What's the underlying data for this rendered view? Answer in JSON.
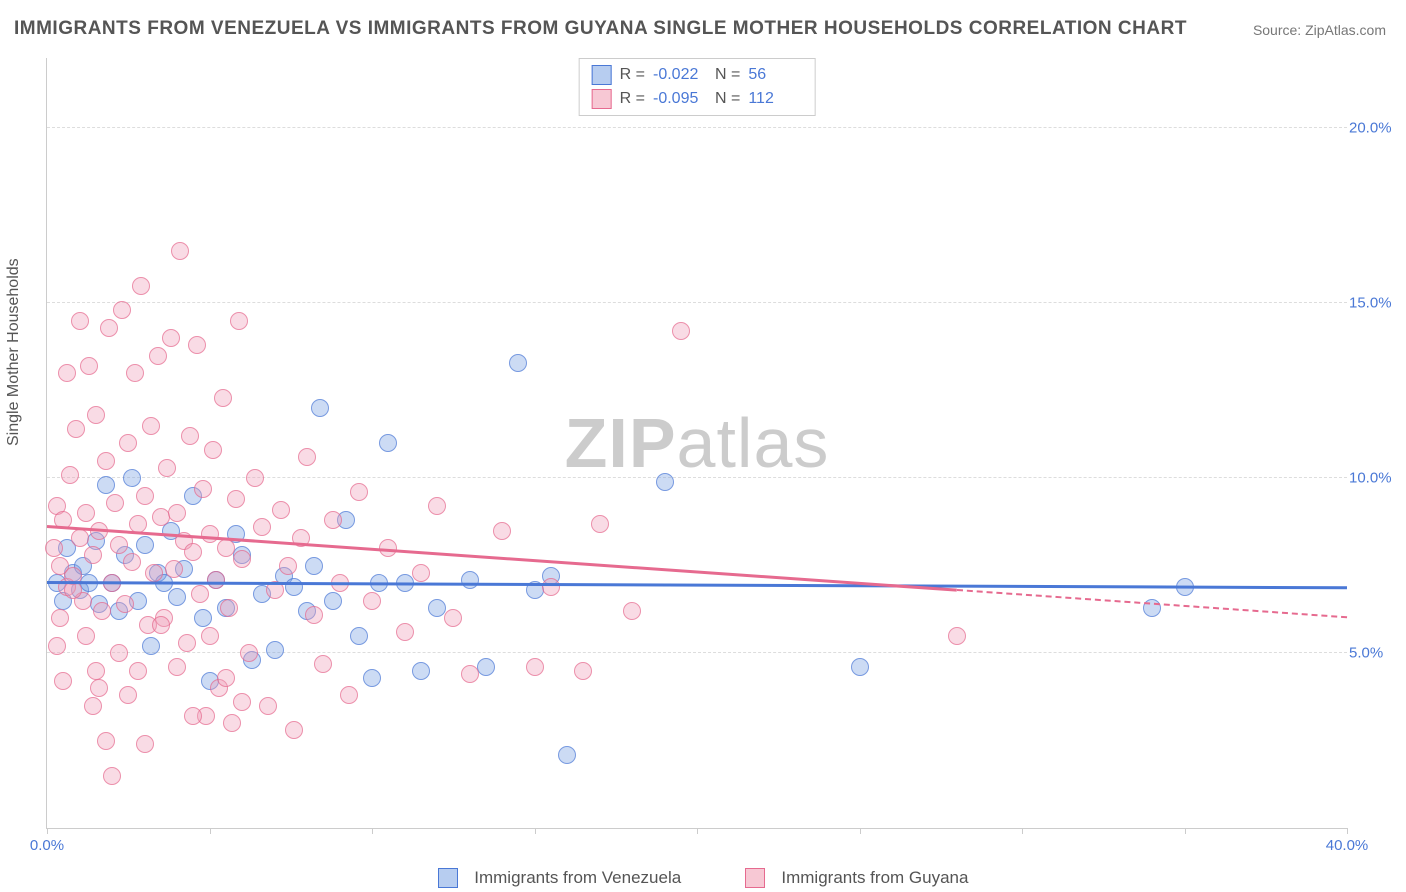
{
  "title": "IMMIGRANTS FROM VENEZUELA VS IMMIGRANTS FROM GUYANA SINGLE MOTHER HOUSEHOLDS CORRELATION CHART",
  "source": "Source: ZipAtlas.com",
  "watermark_zip": "ZIP",
  "watermark_atlas": "atlas",
  "ylabel": "Single Mother Households",
  "chart": {
    "type": "scatter",
    "xlim": [
      0,
      40
    ],
    "ylim": [
      0,
      22
    ],
    "xticks": [
      {
        "v": 0,
        "label": "0.0%"
      },
      {
        "v": 40,
        "label": "40.0%"
      }
    ],
    "xtick_marks": [
      0,
      5,
      10,
      15,
      20,
      25,
      30,
      35,
      40
    ],
    "yticks": [
      {
        "v": 5,
        "label": "5.0%"
      },
      {
        "v": 10,
        "label": "10.0%"
      },
      {
        "v": 15,
        "label": "15.0%"
      },
      {
        "v": 20,
        "label": "20.0%"
      }
    ],
    "grid_color": "#dddddd",
    "background_color": "#ffffff",
    "series": [
      {
        "name": "Immigrants from Venezuela",
        "color_fill": "rgba(120,160,225,0.5)",
        "color_border": "#4a78d6",
        "marker_size": 16,
        "R": "-0.022",
        "N": "56",
        "regression": {
          "x0": 0,
          "y0": 7.0,
          "x1": 40,
          "y1": 6.85,
          "solid_until": 40
        },
        "points": [
          [
            0.3,
            7.0
          ],
          [
            0.5,
            6.5
          ],
          [
            0.6,
            8.0
          ],
          [
            0.8,
            7.3
          ],
          [
            1.0,
            6.8
          ],
          [
            1.1,
            7.5
          ],
          [
            1.3,
            7.0
          ],
          [
            1.5,
            8.2
          ],
          [
            1.6,
            6.4
          ],
          [
            1.8,
            9.8
          ],
          [
            2.0,
            7.0
          ],
          [
            2.2,
            6.2
          ],
          [
            2.4,
            7.8
          ],
          [
            2.6,
            10.0
          ],
          [
            2.8,
            6.5
          ],
          [
            3.0,
            8.1
          ],
          [
            3.2,
            5.2
          ],
          [
            3.4,
            7.3
          ],
          [
            3.6,
            7.0
          ],
          [
            3.8,
            8.5
          ],
          [
            4.0,
            6.6
          ],
          [
            4.2,
            7.4
          ],
          [
            4.5,
            9.5
          ],
          [
            4.8,
            6.0
          ],
          [
            5.0,
            4.2
          ],
          [
            5.2,
            7.1
          ],
          [
            5.5,
            6.3
          ],
          [
            5.8,
            8.4
          ],
          [
            6.0,
            7.8
          ],
          [
            6.3,
            4.8
          ],
          [
            6.6,
            6.7
          ],
          [
            7.0,
            5.1
          ],
          [
            7.3,
            7.2
          ],
          [
            7.6,
            6.9
          ],
          [
            8.0,
            6.2
          ],
          [
            8.4,
            12.0
          ],
          [
            8.8,
            6.5
          ],
          [
            9.2,
            8.8
          ],
          [
            9.6,
            5.5
          ],
          [
            10.0,
            4.3
          ],
          [
            10.5,
            11.0
          ],
          [
            11.0,
            7.0
          ],
          [
            11.5,
            4.5
          ],
          [
            12.0,
            6.3
          ],
          [
            13.0,
            7.1
          ],
          [
            13.5,
            4.6
          ],
          [
            14.5,
            13.3
          ],
          [
            15.0,
            6.8
          ],
          [
            15.5,
            7.2
          ],
          [
            16.0,
            2.1
          ],
          [
            19.0,
            9.9
          ],
          [
            25.0,
            4.6
          ],
          [
            35.0,
            6.9
          ],
          [
            34.0,
            6.3
          ],
          [
            10.2,
            7.0
          ],
          [
            8.2,
            7.5
          ]
        ]
      },
      {
        "name": "Immigrants from Guyana",
        "color_fill": "rgba(240,160,185,0.5)",
        "color_border": "#e66a8f",
        "marker_size": 16,
        "R": "-0.095",
        "N": "112",
        "regression": {
          "x0": 0,
          "y0": 8.6,
          "x1": 40,
          "y1": 6.0,
          "solid_until": 28
        },
        "points": [
          [
            0.2,
            8.0
          ],
          [
            0.3,
            9.2
          ],
          [
            0.4,
            7.5
          ],
          [
            0.5,
            8.8
          ],
          [
            0.6,
            6.9
          ],
          [
            0.7,
            10.1
          ],
          [
            0.8,
            7.2
          ],
          [
            0.9,
            11.4
          ],
          [
            1.0,
            8.3
          ],
          [
            1.1,
            6.5
          ],
          [
            1.2,
            9.0
          ],
          [
            1.3,
            13.2
          ],
          [
            1.4,
            7.8
          ],
          [
            1.5,
            11.8
          ],
          [
            1.6,
            8.5
          ],
          [
            1.7,
            6.2
          ],
          [
            1.8,
            10.5
          ],
          [
            1.9,
            14.3
          ],
          [
            2.0,
            7.0
          ],
          [
            2.1,
            9.3
          ],
          [
            2.2,
            8.1
          ],
          [
            2.3,
            14.8
          ],
          [
            2.4,
            6.4
          ],
          [
            2.5,
            11.0
          ],
          [
            2.6,
            7.6
          ],
          [
            2.7,
            13.0
          ],
          [
            2.8,
            8.7
          ],
          [
            2.9,
            15.5
          ],
          [
            3.0,
            9.5
          ],
          [
            3.1,
            5.8
          ],
          [
            3.2,
            11.5
          ],
          [
            3.3,
            7.3
          ],
          [
            3.4,
            13.5
          ],
          [
            3.5,
            8.9
          ],
          [
            3.6,
            6.0
          ],
          [
            3.7,
            10.3
          ],
          [
            3.8,
            14.0
          ],
          [
            3.9,
            7.4
          ],
          [
            4.0,
            9.0
          ],
          [
            4.1,
            16.5
          ],
          [
            4.2,
            8.2
          ],
          [
            4.3,
            5.3
          ],
          [
            4.4,
            11.2
          ],
          [
            4.5,
            7.9
          ],
          [
            4.6,
            13.8
          ],
          [
            4.7,
            6.7
          ],
          [
            4.8,
            9.7
          ],
          [
            4.9,
            3.2
          ],
          [
            5.0,
            8.4
          ],
          [
            5.1,
            10.8
          ],
          [
            5.2,
            7.1
          ],
          [
            5.3,
            4.0
          ],
          [
            5.4,
            12.3
          ],
          [
            5.5,
            8.0
          ],
          [
            5.6,
            6.3
          ],
          [
            5.7,
            3.0
          ],
          [
            5.8,
            9.4
          ],
          [
            5.9,
            14.5
          ],
          [
            6.0,
            7.7
          ],
          [
            6.2,
            5.0
          ],
          [
            6.4,
            10.0
          ],
          [
            6.6,
            8.6
          ],
          [
            6.8,
            3.5
          ],
          [
            7.0,
            6.8
          ],
          [
            7.2,
            9.1
          ],
          [
            7.4,
            7.5
          ],
          [
            7.6,
            2.8
          ],
          [
            7.8,
            8.3
          ],
          [
            8.0,
            10.6
          ],
          [
            8.2,
            6.1
          ],
          [
            8.5,
            4.7
          ],
          [
            8.8,
            8.8
          ],
          [
            9.0,
            7.0
          ],
          [
            9.3,
            3.8
          ],
          [
            9.6,
            9.6
          ],
          [
            10.0,
            6.5
          ],
          [
            10.5,
            8.0
          ],
          [
            11.0,
            5.6
          ],
          [
            11.5,
            7.3
          ],
          [
            12.0,
            9.2
          ],
          [
            12.5,
            6.0
          ],
          [
            13.0,
            4.4
          ],
          [
            14.0,
            8.5
          ],
          [
            15.0,
            4.6
          ],
          [
            15.5,
            6.9
          ],
          [
            16.5,
            4.5
          ],
          [
            17.0,
            8.7
          ],
          [
            18.0,
            6.2
          ],
          [
            19.5,
            14.2
          ],
          [
            28.0,
            5.5
          ],
          [
            2.0,
            1.5
          ],
          [
            1.5,
            4.5
          ],
          [
            0.6,
            13.0
          ],
          [
            1.0,
            14.5
          ],
          [
            0.4,
            6.0
          ],
          [
            0.3,
            5.2
          ],
          [
            0.5,
            4.2
          ],
          [
            0.8,
            6.8
          ],
          [
            1.2,
            5.5
          ],
          [
            1.4,
            3.5
          ],
          [
            1.6,
            4.0
          ],
          [
            1.8,
            2.5
          ],
          [
            2.2,
            5.0
          ],
          [
            2.5,
            3.8
          ],
          [
            2.8,
            4.5
          ],
          [
            3.0,
            2.4
          ],
          [
            3.5,
            5.8
          ],
          [
            4.0,
            4.6
          ],
          [
            4.5,
            3.2
          ],
          [
            5.0,
            5.5
          ],
          [
            5.5,
            4.3
          ],
          [
            6.0,
            3.6
          ]
        ]
      }
    ]
  },
  "stats_labels": {
    "R": "R =",
    "N": "N ="
  },
  "legend_bottom": {
    "venezuela": "Immigrants from Venezuela",
    "guyana": "Immigrants from Guyana"
  }
}
